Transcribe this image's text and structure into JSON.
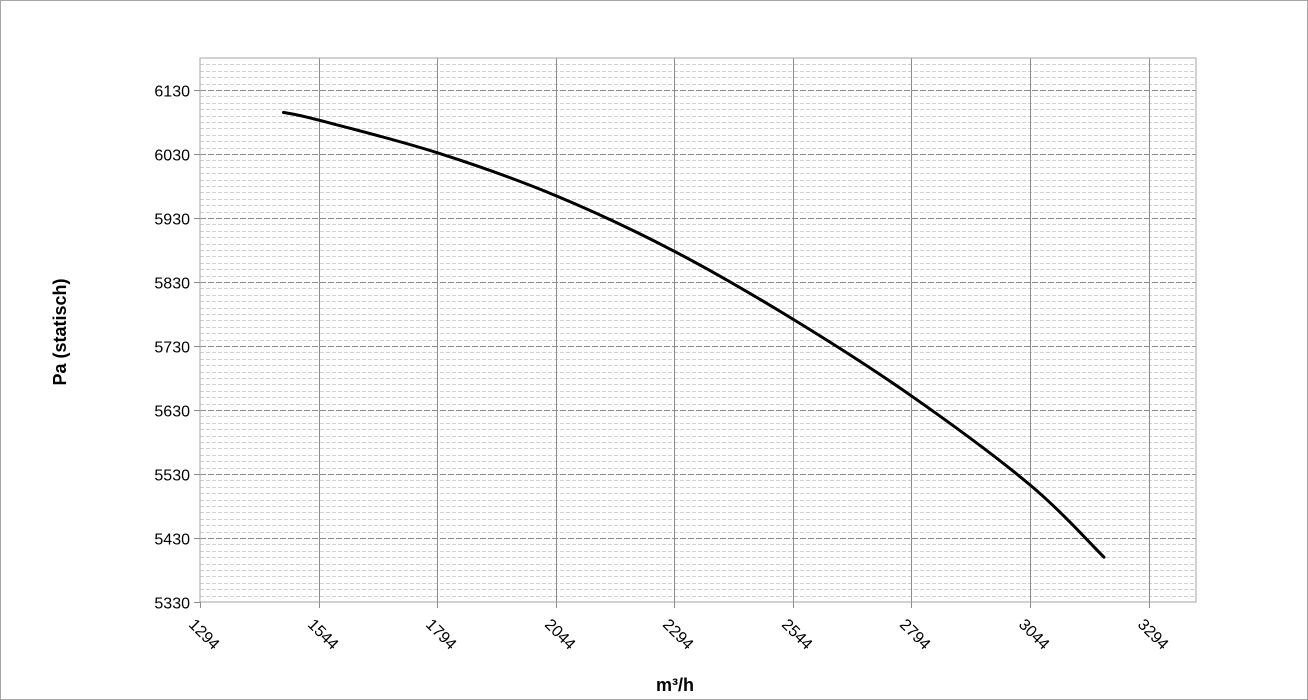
{
  "chart_data": {
    "type": "line",
    "title": "",
    "xlabel": "m³/h",
    "ylabel": "Pa (statisch)",
    "xlim": [
      1294,
      3394
    ],
    "ylim": [
      5330,
      6180
    ],
    "x_ticks": [
      1294,
      1544,
      1794,
      2044,
      2294,
      2544,
      2794,
      3044,
      3294
    ],
    "y_ticks": [
      5330,
      5430,
      5530,
      5630,
      5730,
      5830,
      5930,
      6030,
      6130
    ],
    "x_minor_step": 50,
    "y_minor_step": 10,
    "grid": true,
    "legend": "none",
    "series": [
      {
        "color": "#000000",
        "x": [
          1470,
          1544,
          1794,
          2044,
          2294,
          2544,
          2794,
          3044,
          3200
        ],
        "y": [
          6095,
          6083,
          6032,
          5965,
          5878,
          5772,
          5652,
          5513,
          5400
        ]
      }
    ]
  }
}
